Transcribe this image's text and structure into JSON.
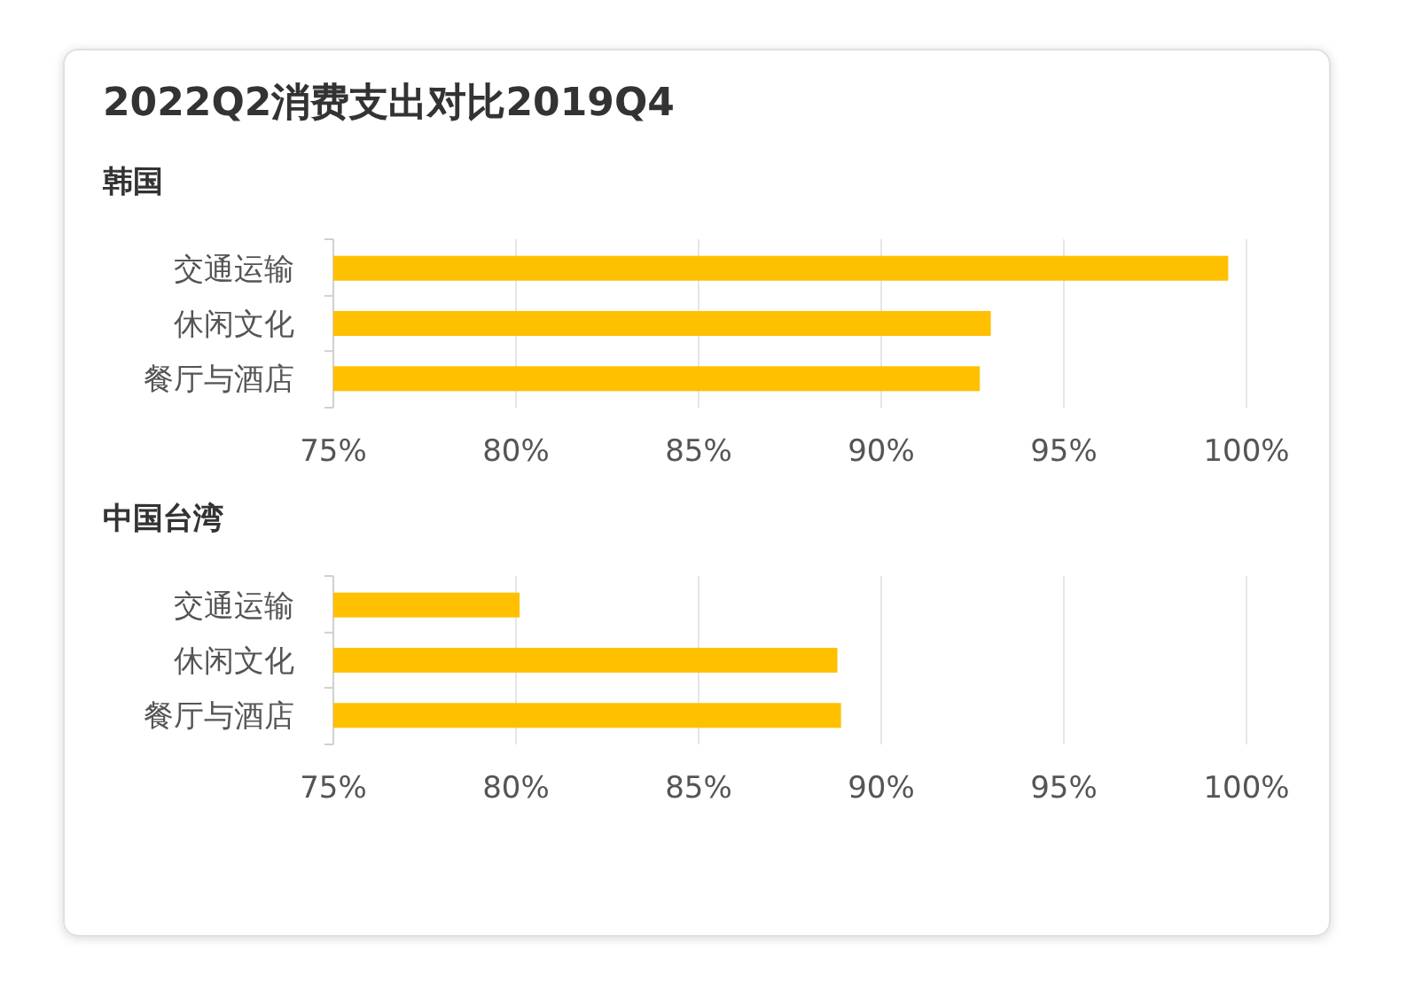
{
  "chart_data": [
    {
      "type": "bar",
      "orientation": "horizontal",
      "title": "2022Q2消费支出对比2019Q4",
      "subtitle": "韩国",
      "categories": [
        "交通运输",
        "休闲文化",
        "餐厅与酒店"
      ],
      "values": [
        99.5,
        93.0,
        92.7
      ],
      "color": "#ffc000",
      "xlim": [
        75,
        100
      ],
      "xticks": [
        {
          "value": 75,
          "label": "75%"
        },
        {
          "value": 80,
          "label": "80%"
        },
        {
          "value": 85,
          "label": "85%"
        },
        {
          "value": 90,
          "label": "90%"
        },
        {
          "value": 95,
          "label": "95%"
        },
        {
          "value": 100,
          "label": "100%"
        }
      ],
      "grid": "x"
    },
    {
      "type": "bar",
      "orientation": "horizontal",
      "subtitle": "中国台湾",
      "categories": [
        "交通运输",
        "休闲文化",
        "餐厅与酒店"
      ],
      "values": [
        80.1,
        88.8,
        88.9
      ],
      "color": "#ffc000",
      "xlim": [
        75,
        100
      ],
      "xticks": [
        {
          "value": 75,
          "label": "75%"
        },
        {
          "value": 80,
          "label": "80%"
        },
        {
          "value": 85,
          "label": "85%"
        },
        {
          "value": 90,
          "label": "90%"
        },
        {
          "value": 95,
          "label": "95%"
        },
        {
          "value": 100,
          "label": "100%"
        }
      ],
      "grid": "x"
    }
  ]
}
